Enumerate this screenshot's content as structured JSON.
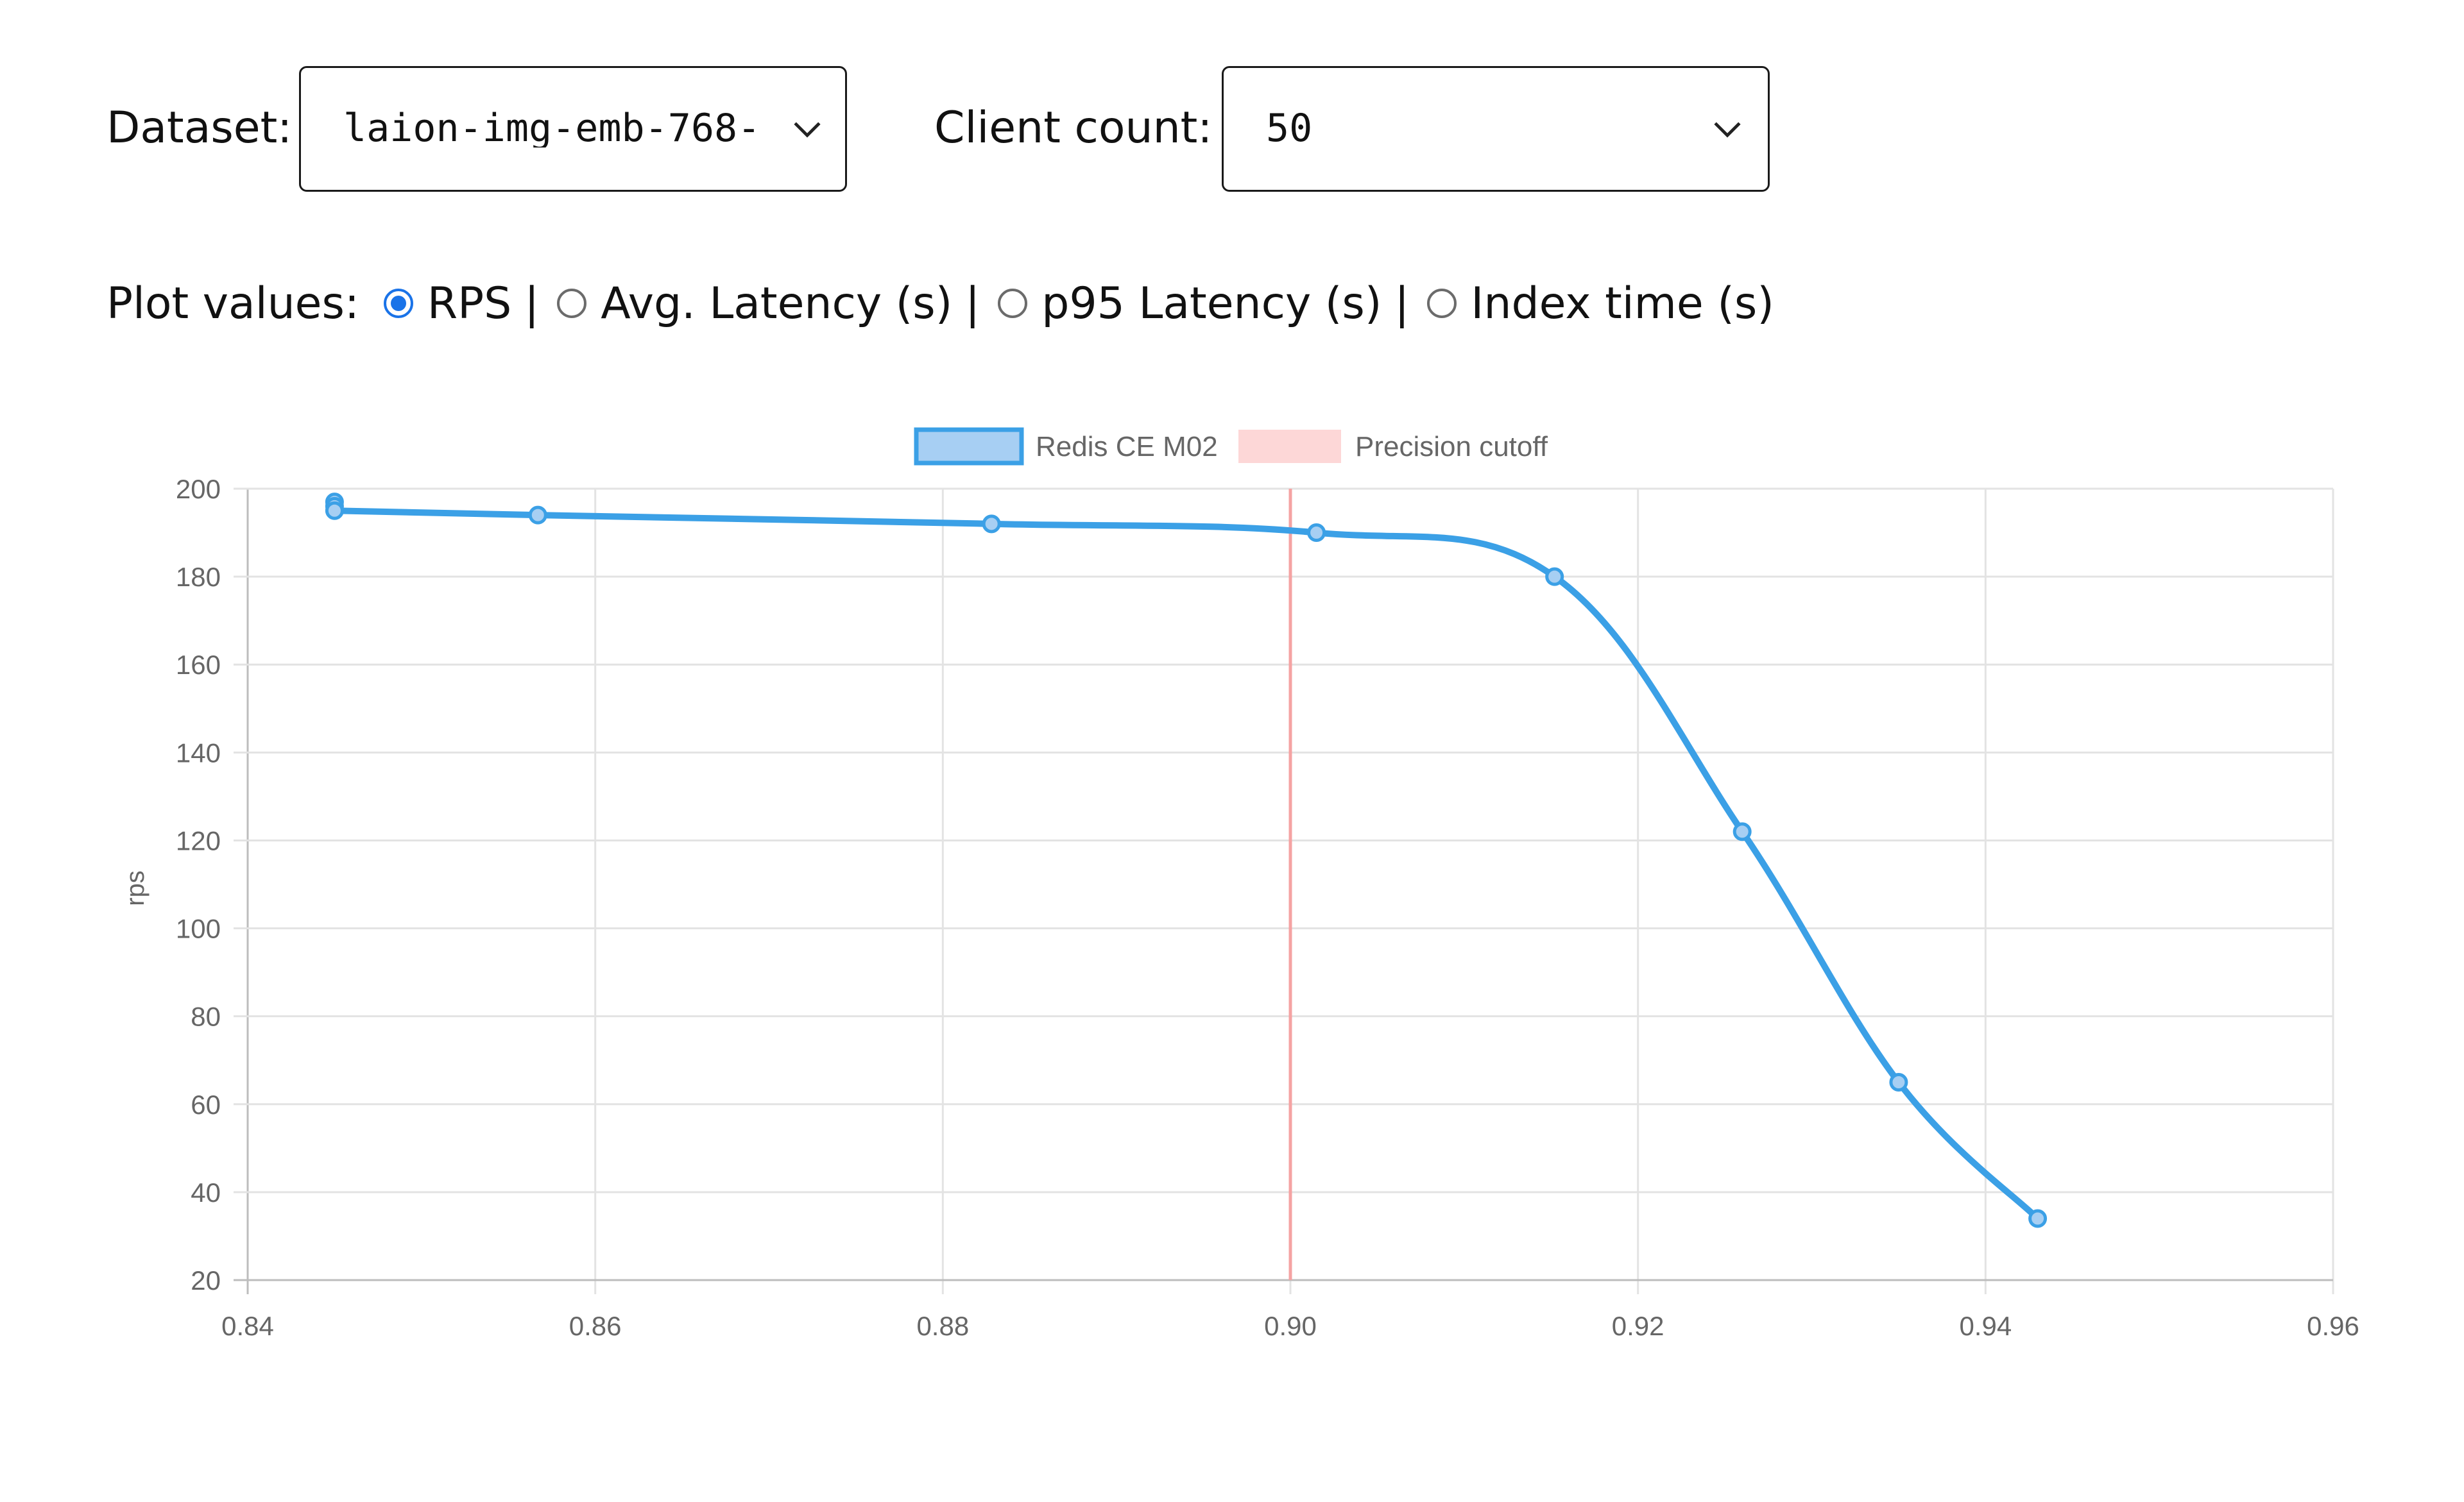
{
  "controls": {
    "dataset": {
      "label": "Dataset:",
      "value": "laion-img-emb-768-"
    },
    "client_count": {
      "label": "Client count:",
      "value": "50"
    },
    "plot_values": {
      "label": "Plot values:",
      "options": [
        {
          "label": "RPS",
          "selected": true
        },
        {
          "label": "Avg. Latency (s)",
          "selected": false
        },
        {
          "label": "p95 Latency (s)",
          "selected": false
        },
        {
          "label": "Index time (s)",
          "selected": false
        }
      ],
      "separator": "|"
    }
  },
  "chart_data": {
    "type": "line",
    "ylabel": "rps",
    "xlim": [
      0.84,
      0.96
    ],
    "ylim": [
      20,
      200
    ],
    "x_ticks": [
      "0.84",
      "0.86",
      "0.88",
      "0.90",
      "0.92",
      "0.94",
      "0.96"
    ],
    "y_ticks": [
      "20",
      "40",
      "60",
      "80",
      "100",
      "120",
      "140",
      "160",
      "180",
      "200"
    ],
    "grid": true,
    "legend_position": "top",
    "series": [
      {
        "name": "Redis CE M02",
        "color": "#3ba0e6",
        "x": [
          0.845,
          0.845,
          0.845,
          0.8567,
          0.8828,
          0.9015,
          0.9152,
          0.926,
          0.935,
          0.943
        ],
        "y": [
          197,
          196,
          195,
          194,
          192,
          190,
          180,
          122,
          65,
          34
        ]
      }
    ],
    "cutoff": {
      "name": "Precision cutoff",
      "x": 0.9,
      "color": "#f5a3a3"
    }
  }
}
